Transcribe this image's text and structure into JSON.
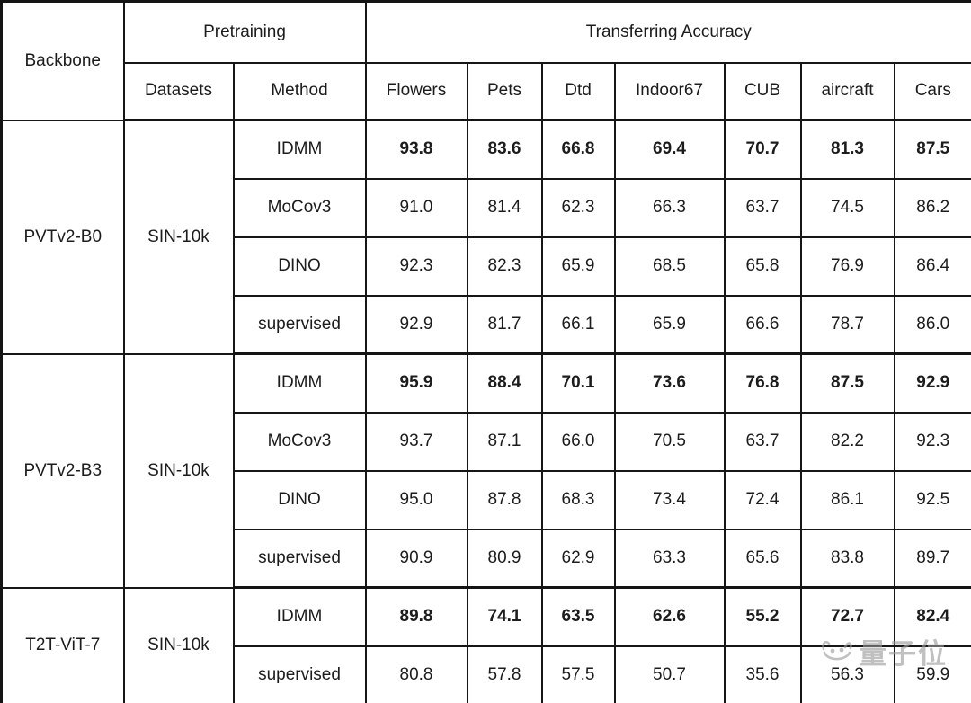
{
  "table": {
    "header": {
      "backbone": "Backbone",
      "pretraining": "Pretraining",
      "transferring": "Transferring Accuracy",
      "datasets": "Datasets",
      "method": "Method",
      "benchmarks": [
        "Flowers",
        "Pets",
        "Dtd",
        "Indoor67",
        "CUB",
        "aircraft",
        "Cars"
      ]
    },
    "groups": [
      {
        "backbone": "PVTv2-B0",
        "dataset": "SIN-10k",
        "rows": [
          {
            "method": "IDMM",
            "bold": true,
            "values": [
              "93.8",
              "83.6",
              "66.8",
              "69.4",
              "70.7",
              "81.3",
              "87.5"
            ]
          },
          {
            "method": "MoCov3",
            "bold": false,
            "values": [
              "91.0",
              "81.4",
              "62.3",
              "66.3",
              "63.7",
              "74.5",
              "86.2"
            ]
          },
          {
            "method": "DINO",
            "bold": false,
            "values": [
              "92.3",
              "82.3",
              "65.9",
              "68.5",
              "65.8",
              "76.9",
              "86.4"
            ]
          },
          {
            "method": "supervised",
            "bold": false,
            "values": [
              "92.9",
              "81.7",
              "66.1",
              "65.9",
              "66.6",
              "78.7",
              "86.0"
            ]
          }
        ]
      },
      {
        "backbone": "PVTv2-B3",
        "dataset": "SIN-10k",
        "rows": [
          {
            "method": "IDMM",
            "bold": true,
            "values": [
              "95.9",
              "88.4",
              "70.1",
              "73.6",
              "76.8",
              "87.5",
              "92.9"
            ]
          },
          {
            "method": "MoCov3",
            "bold": false,
            "values": [
              "93.7",
              "87.1",
              "66.0",
              "70.5",
              "63.7",
              "82.2",
              "92.3"
            ]
          },
          {
            "method": "DINO",
            "bold": false,
            "values": [
              "95.0",
              "87.8",
              "68.3",
              "73.4",
              "72.4",
              "86.1",
              "92.5"
            ]
          },
          {
            "method": "supervised",
            "bold": false,
            "values": [
              "90.9",
              "80.9",
              "62.9",
              "63.3",
              "65.6",
              "83.8",
              "89.7"
            ]
          }
        ]
      },
      {
        "backbone": "T2T-ViT-7",
        "dataset": "SIN-10k",
        "rows": [
          {
            "method": "IDMM",
            "bold": true,
            "values": [
              "89.8",
              "74.1",
              "63.5",
              "62.6",
              "55.2",
              "72.7",
              "82.4"
            ]
          },
          {
            "method": "supervised",
            "bold": false,
            "values": [
              "80.8",
              "57.8",
              "57.5",
              "50.7",
              "35.6",
              "56.3",
              "59.9"
            ]
          }
        ]
      }
    ]
  },
  "watermark": {
    "text": "量子位"
  },
  "colors": {
    "border": "#141414",
    "text": "#1c1c1c",
    "watermark_gray": "#9a9a9a",
    "background": "#ffffff"
  }
}
